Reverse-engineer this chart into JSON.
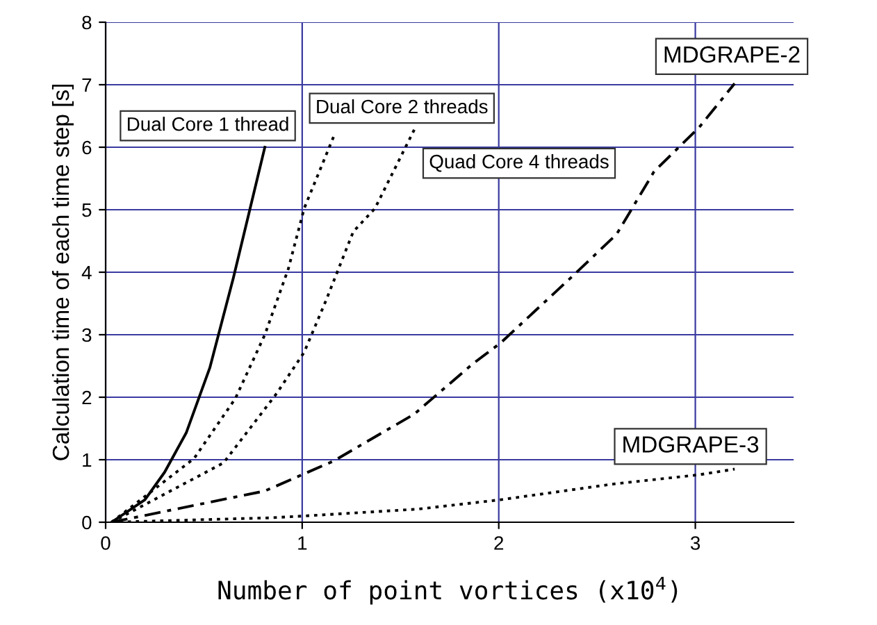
{
  "chart_data": {
    "type": "line",
    "xlabel": "Number of point vortices (x10$^{4}$)",
    "ylabel": "Calculation time of each time step [s]",
    "xlim": [
      0,
      3.5
    ],
    "xticks": [
      0,
      1,
      2,
      3
    ],
    "ylim": [
      0,
      8
    ],
    "yticks": [
      0,
      1,
      2,
      3,
      4,
      5,
      6,
      7,
      8
    ],
    "grid": true,
    "marker": "none",
    "series": [
      {
        "name": "Dual Core 1 thread",
        "color": "#000000",
        "line_style": "solid",
        "x": [
          0.03,
          0.2,
          0.3,
          0.41,
          0.53,
          0.65,
          0.81
        ],
        "values": [
          0,
          0.36,
          0.8,
          1.43,
          2.47,
          3.91,
          6.0
        ]
      },
      {
        "name": "Dual Core 2 threads",
        "color": "#000000",
        "line_style": "dotted",
        "x": [
          0.03,
          0.45,
          0.66,
          0.81,
          0.93,
          1.01,
          1.16
        ],
        "values": [
          0,
          1.02,
          1.98,
          3.0,
          4.06,
          5.02,
          6.17
        ]
      },
      {
        "name": "Quad Core 4 threads",
        "color": "#000000",
        "line_style": "dotted",
        "x": [
          0.03,
          0.6,
          0.87,
          1.01,
          1.12,
          1.26,
          1.37,
          1.57
        ],
        "values": [
          0,
          0.95,
          2.06,
          2.72,
          3.54,
          4.65,
          5.02,
          6.28
        ]
      },
      {
        "name": "MDGRAPE-2",
        "color": "#000000",
        "line_style": "dashed",
        "x": [
          0.03,
          0.81,
          1.16,
          1.57,
          1.87,
          2.01,
          2.39,
          2.6,
          2.79,
          3.02,
          3.2
        ],
        "values": [
          0,
          0.5,
          0.98,
          1.73,
          2.54,
          2.87,
          3.98,
          4.61,
          5.61,
          6.32,
          7.02
        ]
      },
      {
        "name": "MDGRAPE-3",
        "color": "#000000",
        "line_style": "dotted",
        "x": [
          0.03,
          0.83,
          1.01,
          1.59,
          2.01,
          2.58,
          3.02,
          3.2
        ],
        "values": [
          0,
          0.07,
          0.1,
          0.21,
          0.36,
          0.61,
          0.76,
          0.85
        ]
      }
    ]
  }
}
